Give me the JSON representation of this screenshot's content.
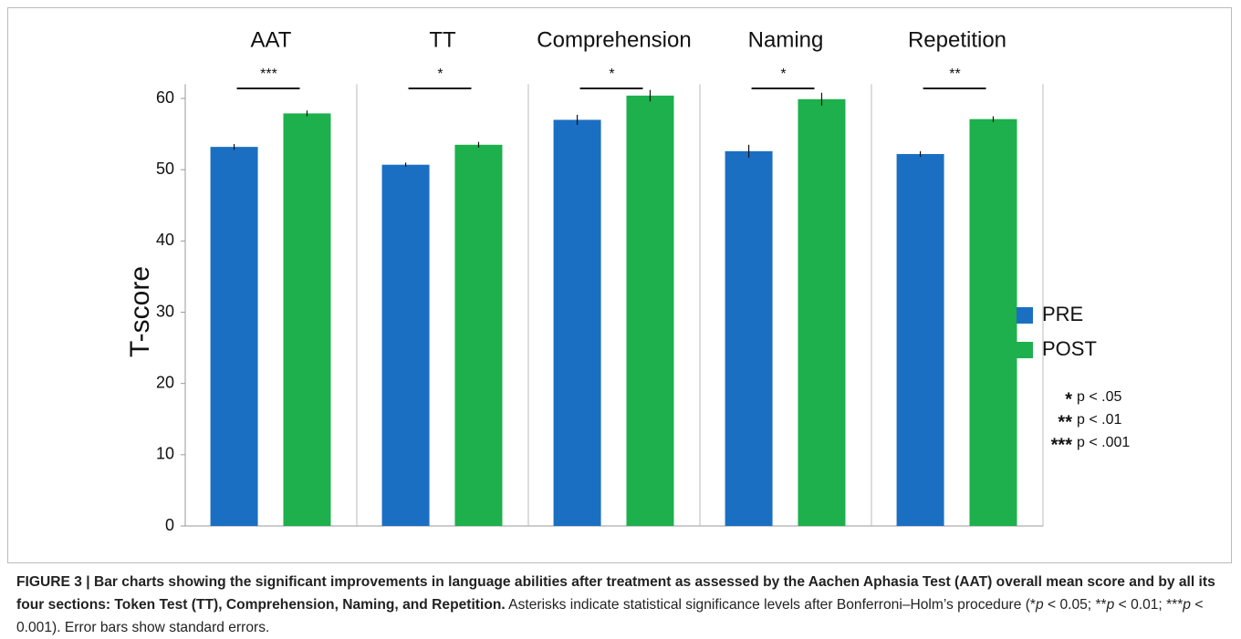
{
  "chart_data": {
    "type": "bar",
    "ylabel": "T-score",
    "categories": [
      "AAT",
      "TT",
      "Comprehension",
      "Naming",
      "Repetition"
    ],
    "series": [
      {
        "name": "PRE",
        "color": "#1b6fc2",
        "values": [
          53.2,
          50.7,
          57.0,
          52.6,
          52.2
        ],
        "errors": [
          0.4,
          0.3,
          0.7,
          0.9,
          0.4
        ]
      },
      {
        "name": "POST",
        "color": "#1db04c",
        "values": [
          57.9,
          53.5,
          60.4,
          59.9,
          57.1
        ],
        "errors": [
          0.4,
          0.4,
          0.8,
          0.9,
          0.4
        ]
      }
    ],
    "significance": [
      "***",
      "*",
      "*",
      "*",
      "**"
    ],
    "significance_legend": [
      {
        "symbol": "*",
        "label": "p < .05"
      },
      {
        "symbol": "**",
        "label": "p < .01"
      },
      {
        "symbol": "***",
        "label": "p < .001"
      }
    ],
    "ylim": [
      0,
      62
    ],
    "yticks": [
      0,
      10,
      20,
      30,
      40,
      50,
      60
    ]
  },
  "caption": {
    "bold": "FIGURE 3 | Bar charts showing the significant improvements in language abilities after treatment as assessed by the Aachen Aphasia Test (AAT) overall mean score and by all its four sections: Token Test (TT), Comprehension, Naming, and Repetition.",
    "segments": [
      " Asterisks indicate statistical significance levels after Bonferroni–Holm’s procedure (*",
      "p",
      " < 0.05; **",
      "p",
      " < 0.01; ***",
      "p",
      " < 0.001). Error bars show standard errors."
    ]
  }
}
